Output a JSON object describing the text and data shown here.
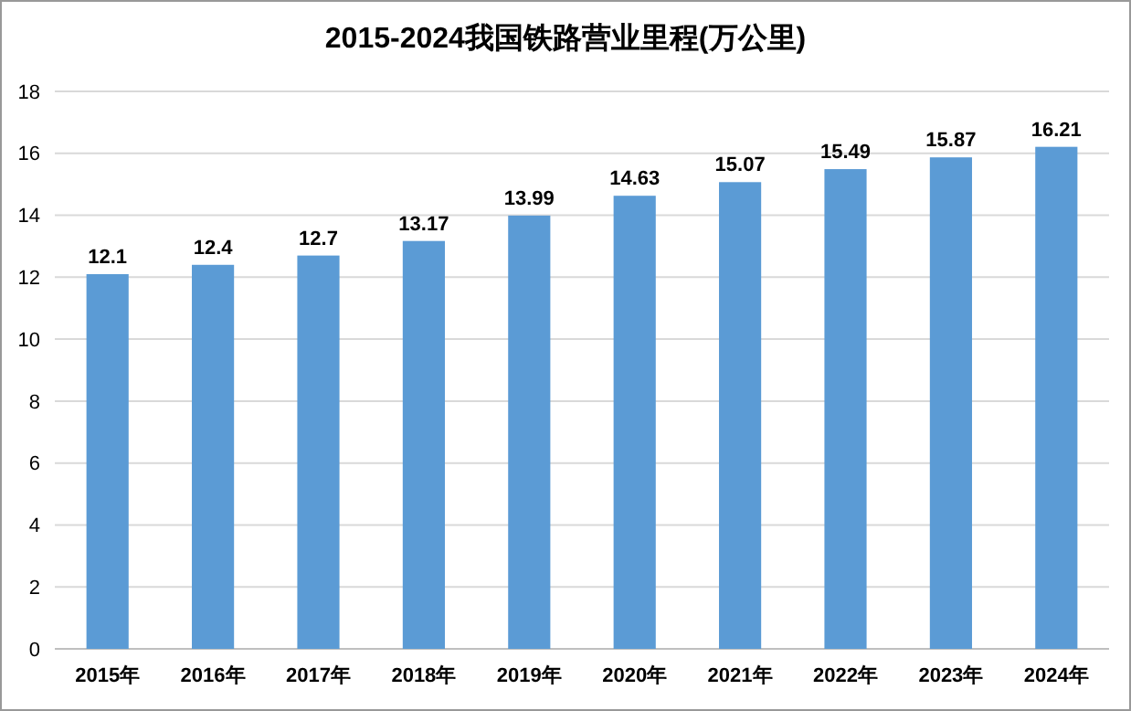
{
  "chart_data": {
    "type": "bar",
    "title": "2015-2024我国铁路营业里程(万公里)",
    "categories": [
      "2015年",
      "2016年",
      "2017年",
      "2018年",
      "2019年",
      "2020年",
      "2021年",
      "2022年",
      "2023年",
      "2024年"
    ],
    "values": [
      12.1,
      12.4,
      12.7,
      13.17,
      13.99,
      14.63,
      15.07,
      15.49,
      15.87,
      16.21
    ],
    "color": "#5b9bd5",
    "ylim": [
      0,
      18
    ],
    "yticks": [
      0,
      2,
      4,
      6,
      8,
      10,
      12,
      14,
      16,
      18
    ],
    "grid": "y",
    "data_labels": true
  }
}
